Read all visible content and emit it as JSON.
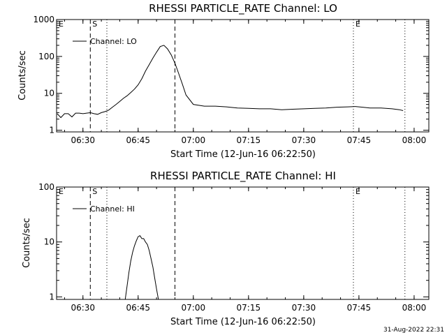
{
  "footer": {
    "timestamp": "31-Aug-2022 22:31"
  },
  "chart_data": [
    {
      "type": "line",
      "title": "RHESSI PARTICLE_RATE Channel: LO",
      "xlabel": "Start Time (12-Jun-16 06:22:50)",
      "ylabel": "Counts/sec",
      "yscale": "log",
      "xlim": [
        "06:22:50",
        "08:04:00"
      ],
      "ylim": [
        0.9,
        1000
      ],
      "x_ticks": [
        "06:30",
        "06:45",
        "07:00",
        "07:15",
        "07:30",
        "07:45",
        "08:00"
      ],
      "y_ticks": [
        "1",
        "10",
        "100",
        "1000"
      ],
      "legend": {
        "entries": [
          "Channel: LO"
        ],
        "position": "top-left"
      },
      "markers": [
        {
          "label": "E",
          "time": "06:22:50",
          "style": "dotted"
        },
        {
          "label": "S",
          "time": "06:32:00",
          "style": "dashed"
        },
        {
          "label": "",
          "time": "06:36:30",
          "style": "dotted"
        },
        {
          "label": "",
          "time": "06:55:00",
          "style": "dashed"
        },
        {
          "label": "E",
          "time": "07:43:30",
          "style": "dotted"
        },
        {
          "label": "",
          "time": "07:57:30",
          "style": "dotted"
        }
      ],
      "series": [
        {
          "name": "Channel: LO",
          "x": [
            "06:23",
            "06:24",
            "06:25",
            "06:26",
            "06:27",
            "06:28",
            "06:29",
            "06:30",
            "06:31",
            "06:32",
            "06:33",
            "06:34",
            "06:35",
            "06:36",
            "06:37",
            "06:38",
            "06:39",
            "06:40",
            "06:41",
            "06:42",
            "06:43",
            "06:44",
            "06:45",
            "06:46",
            "06:47",
            "06:48",
            "06:49",
            "06:50",
            "06:51",
            "06:52",
            "06:53",
            "06:54",
            "06:55",
            "06:56",
            "06:57",
            "06:58",
            "07:00",
            "07:03",
            "07:06",
            "07:09",
            "07:12",
            "07:15",
            "07:18",
            "07:21",
            "07:24",
            "07:27",
            "07:30",
            "07:33",
            "07:36",
            "07:39",
            "07:42",
            "07:44",
            "07:46",
            "07:48",
            "07:51",
            "07:54",
            "07:56",
            "07:57"
          ],
          "y": [
            2.8,
            2.2,
            2.8,
            2.8,
            2.3,
            2.9,
            2.9,
            2.8,
            2.9,
            3.0,
            2.8,
            2.7,
            3.0,
            3.2,
            3.5,
            4.2,
            5.0,
            6.0,
            7.3,
            8.6,
            10.5,
            13,
            17,
            25,
            40,
            60,
            90,
            130,
            185,
            200,
            160,
            110,
            65,
            35,
            18,
            9,
            5.0,
            4.5,
            4.5,
            4.3,
            4.0,
            3.9,
            3.8,
            3.8,
            3.6,
            3.7,
            3.8,
            3.9,
            4.0,
            4.2,
            4.3,
            4.4,
            4.2,
            4.0,
            4.0,
            3.8,
            3.6,
            3.4
          ]
        }
      ]
    },
    {
      "type": "line",
      "title": "RHESSI PARTICLE_RATE Channel: HI",
      "xlabel": "Start Time (12-Jun-16 06:22:50)",
      "ylabel": "Counts/sec",
      "yscale": "log",
      "xlim": [
        "06:22:50",
        "08:04:00"
      ],
      "ylim": [
        0.9,
        100
      ],
      "x_ticks": [
        "06:30",
        "06:45",
        "07:00",
        "07:15",
        "07:30",
        "07:45",
        "08:00"
      ],
      "y_ticks": [
        "1",
        "10",
        "100"
      ],
      "legend": {
        "entries": [
          "Channel: HI"
        ],
        "position": "top-left"
      },
      "markers": [
        {
          "label": "E",
          "time": "06:22:50",
          "style": "dotted"
        },
        {
          "label": "S",
          "time": "06:32:00",
          "style": "dashed"
        },
        {
          "label": "",
          "time": "06:36:30",
          "style": "dotted"
        },
        {
          "label": "",
          "time": "06:55:00",
          "style": "dashed"
        },
        {
          "label": "E",
          "time": "07:43:30",
          "style": "dotted"
        },
        {
          "label": "",
          "time": "07:57:30",
          "style": "dotted"
        }
      ],
      "series": [
        {
          "name": "Channel: HI",
          "x": [
            "06:41:30",
            "06:42:00",
            "06:42:30",
            "06:43:00",
            "06:43:30",
            "06:44:00",
            "06:44:30",
            "06:45:00",
            "06:45:30",
            "06:46:00",
            "06:46:30",
            "06:47:00",
            "06:47:30",
            "06:48:00",
            "06:48:30",
            "06:49:00",
            "06:49:30",
            "06:50:00",
            "06:50:30"
          ],
          "y": [
            0.9,
            1.6,
            2.8,
            4.5,
            6.5,
            8.5,
            10.5,
            12.5,
            13.0,
            11.5,
            11.5,
            10.0,
            9.0,
            7.0,
            5.0,
            3.5,
            2.2,
            1.4,
            0.9
          ]
        }
      ]
    }
  ]
}
